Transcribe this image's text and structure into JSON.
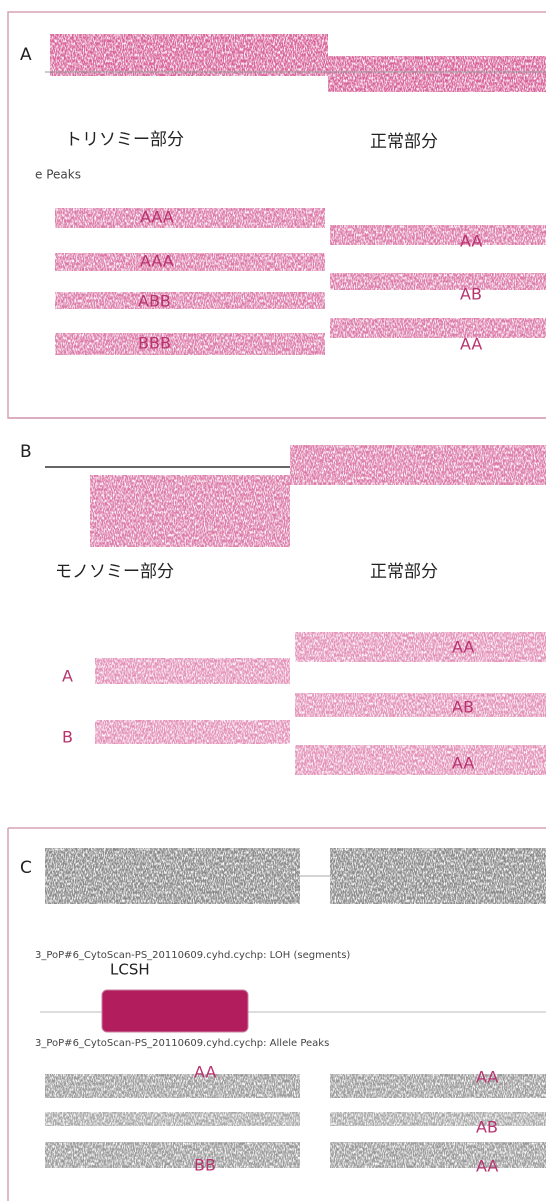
{
  "panels": [
    {
      "letter": "A",
      "region_left": "トリソミー部分",
      "region_right": "正常部分",
      "track_label": "e Peaks",
      "left_peaks": [
        "AAA",
        "AAA",
        "ABB",
        "BBB"
      ],
      "right_peaks": [
        "AA",
        "AB",
        "AA"
      ]
    },
    {
      "letter": "B",
      "region_left": "モノソミー部分",
      "region_right": "正常部分",
      "left_peaks": [
        "A",
        "B"
      ],
      "right_peaks": [
        "AA",
        "AB",
        "AA"
      ]
    },
    {
      "letter": "C",
      "track_loh": "3_PoP#6_CytoScan-PS_20110609.cyhd.cychp: LOH (segments)",
      "segment_label": "LCSH",
      "track_peaks": "3_PoP#6_CytoScan-PS_20110609.cyhd.cychp: Allele Peaks",
      "left_peaks": [
        "AA",
        "BB"
      ],
      "right_peaks": [
        "AA",
        "AB",
        "AA"
      ]
    }
  ]
}
